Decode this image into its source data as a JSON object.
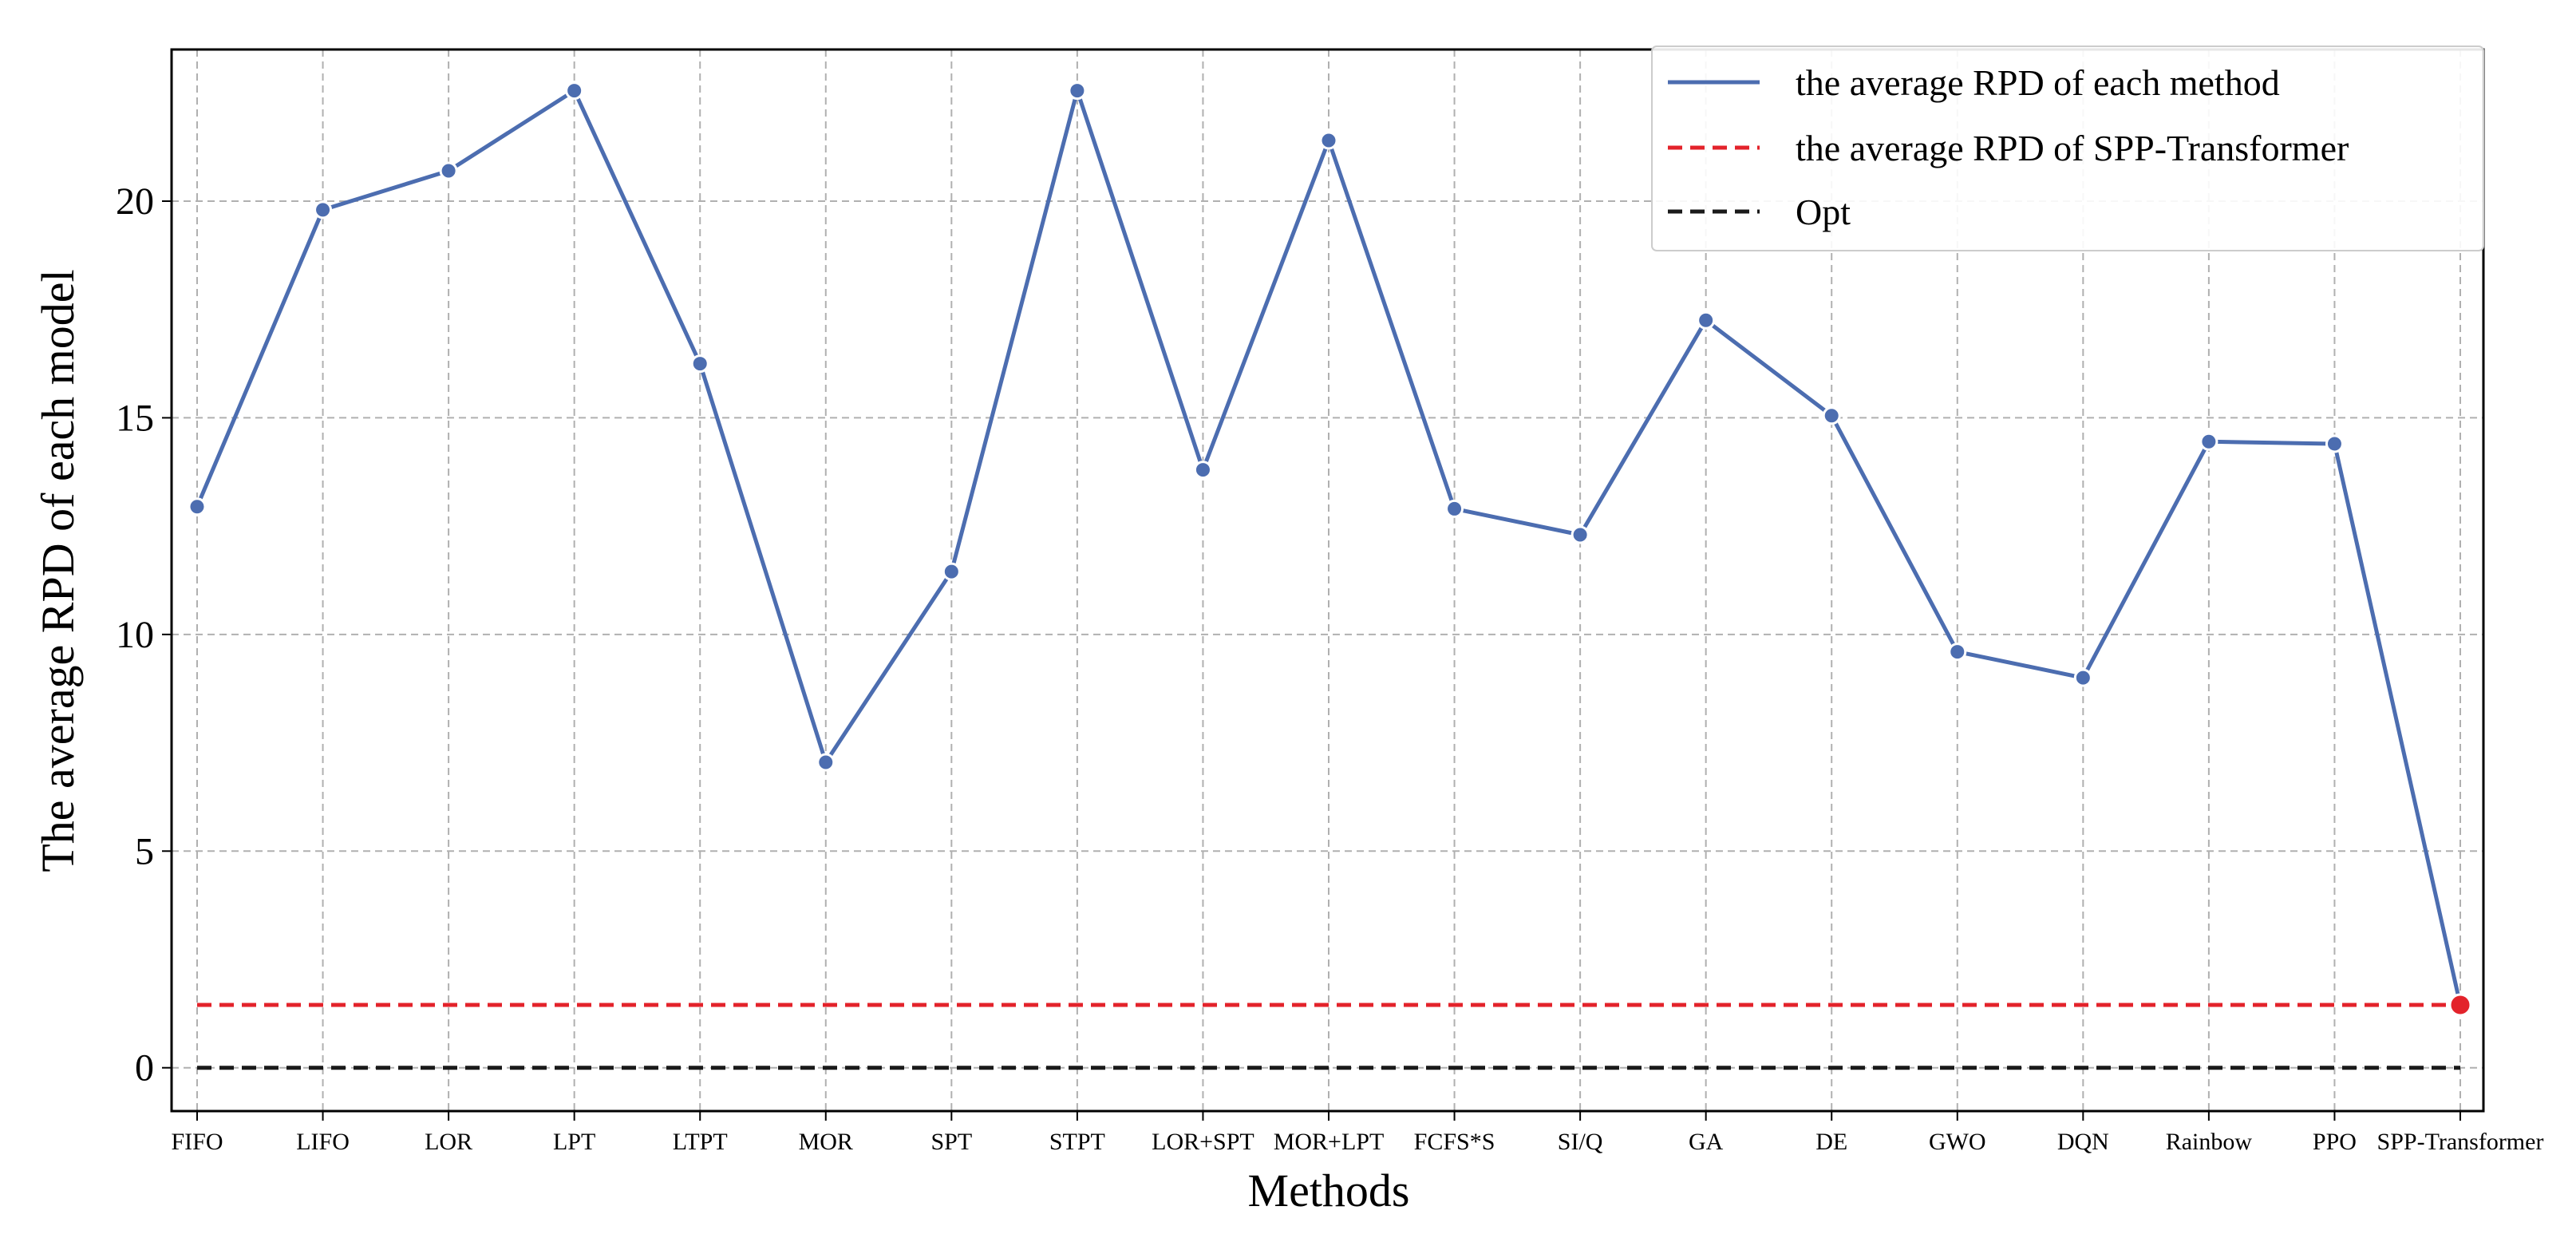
{
  "chart_data": {
    "type": "line",
    "title": "",
    "xlabel": "Methods",
    "ylabel": "The average RPD of each model",
    "categories": [
      "FIFO",
      "LIFO",
      "LOR",
      "LPT",
      "LTPT",
      "MOR",
      "SPT",
      "STPT",
      "LOR+SPT",
      "MOR+LPT",
      "FCFS*S",
      "SI/Q",
      "GA",
      "DE",
      "GWO",
      "DQN",
      "Rainbow",
      "PPO",
      "SPP-Transformer"
    ],
    "ylim": [
      -1,
      23.5
    ],
    "yticks": [
      0,
      5,
      10,
      15,
      20
    ],
    "grid": true,
    "legend_position": "top-right",
    "series": [
      {
        "name": "the average RPD of each method",
        "style": "solid",
        "color": "#4c6db0",
        "values": [
          12.95,
          19.8,
          20.7,
          22.55,
          16.25,
          7.05,
          11.45,
          22.55,
          13.8,
          21.4,
          12.9,
          12.3,
          17.25,
          15.05,
          9.6,
          9.0,
          14.45,
          14.4,
          1.45
        ]
      },
      {
        "name": "the average RPD of SPP-Transformer",
        "style": "dashed",
        "color": "#e3232b",
        "constant": 1.45
      },
      {
        "name": "Opt",
        "style": "dashed",
        "color": "#1a1a1a",
        "constant": 0
      }
    ],
    "highlight": {
      "category": "SPP-Transformer",
      "value": 1.45,
      "color": "#e3232b"
    }
  }
}
